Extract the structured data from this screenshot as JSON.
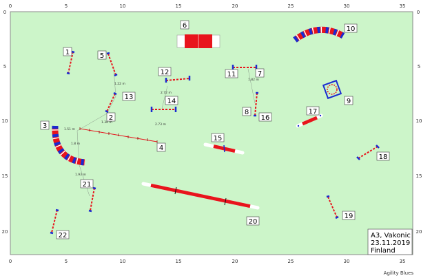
{
  "axis": {
    "x_ticks": [
      "0",
      "5",
      "10",
      "15",
      "20",
      "25",
      "30",
      "35"
    ],
    "y_ticks": [
      "0",
      "5",
      "10",
      "15",
      "20"
    ]
  },
  "obstacles": [
    {
      "num": "1",
      "type": "jump"
    },
    {
      "num": "2",
      "type": "jump"
    },
    {
      "num": "3",
      "type": "tunnel"
    },
    {
      "num": "4",
      "type": "weave"
    },
    {
      "num": "5",
      "type": "jump"
    },
    {
      "num": "6",
      "type": "tunnel"
    },
    {
      "num": "7",
      "type": "jump"
    },
    {
      "num": "8",
      "type": "jump"
    },
    {
      "num": "9",
      "type": "tire"
    },
    {
      "num": "10",
      "type": "tunnel"
    },
    {
      "num": "11",
      "type": "jump"
    },
    {
      "num": "12",
      "type": "jump"
    },
    {
      "num": "13",
      "type": "jump"
    },
    {
      "num": "14",
      "type": "jump"
    },
    {
      "num": "15",
      "type": "seesaw"
    },
    {
      "num": "16",
      "type": "jump"
    },
    {
      "num": "17",
      "type": "seesaw"
    },
    {
      "num": "18",
      "type": "jump"
    },
    {
      "num": "19",
      "type": "jump"
    },
    {
      "num": "20",
      "type": "dogwalk"
    },
    {
      "num": "21",
      "type": "jump"
    },
    {
      "num": "22",
      "type": "jump"
    }
  ],
  "distances": [
    "1.22 m",
    "2.72 m",
    "1.82 m",
    "1.36 m",
    "2.73 m",
    "1.51 m",
    "1.8 m",
    "1.93 m"
  ],
  "info": {
    "line1": "A3, Vakonic",
    "line2": "23.11.2019",
    "line3": "Finland"
  },
  "footer": "Agility Blues",
  "colors": {
    "field": "#ccf5c9",
    "border": "#888888",
    "red": "#e8141c",
    "blue": "#1a2ad0"
  }
}
